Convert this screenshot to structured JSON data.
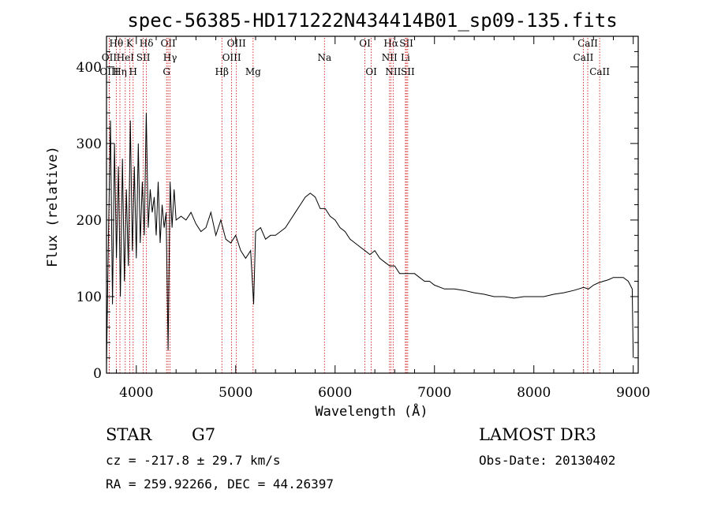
{
  "chart_data": {
    "type": "line",
    "title": "spec-56385-HD171222N434414B01_sp09-135.fits",
    "xlabel": "Wavelength (Å)",
    "ylabel": "Flux (relative)",
    "xlim": [
      3700,
      9050
    ],
    "ylim": [
      0,
      440
    ],
    "xticks": [
      4000,
      5000,
      6000,
      7000,
      8000,
      9000
    ],
    "yticks": [
      0,
      100,
      200,
      300,
      400
    ],
    "series": [
      {
        "name": "spectrum",
        "color": "#000000",
        "x": [
          3700,
          3720,
          3740,
          3760,
          3780,
          3800,
          3820,
          3840,
          3860,
          3880,
          3900,
          3920,
          3940,
          3960,
          3980,
          4000,
          4020,
          4040,
          4060,
          4080,
          4100,
          4120,
          4140,
          4160,
          4180,
          4200,
          4220,
          4240,
          4260,
          4280,
          4300,
          4320,
          4340,
          4360,
          4380,
          4400,
          4450,
          4500,
          4550,
          4600,
          4650,
          4700,
          4750,
          4800,
          4850,
          4900,
          4950,
          5000,
          5050,
          5100,
          5150,
          5180,
          5200,
          5250,
          5300,
          5350,
          5400,
          5450,
          5500,
          5550,
          5600,
          5650,
          5700,
          5750,
          5800,
          5850,
          5900,
          5950,
          6000,
          6050,
          6100,
          6150,
          6200,
          6250,
          6300,
          6350,
          6400,
          6450,
          6500,
          6550,
          6600,
          6650,
          6700,
          6750,
          6800,
          6850,
          6900,
          6950,
          7000,
          7100,
          7200,
          7300,
          7400,
          7500,
          7600,
          7700,
          7800,
          7900,
          8000,
          8100,
          8200,
          8300,
          8400,
          8450,
          8500,
          8550,
          8600,
          8650,
          8700,
          8750,
          8800,
          8850,
          8900,
          8950,
          8990,
          9000
        ],
        "y": [
          10,
          180,
          330,
          90,
          300,
          150,
          270,
          100,
          280,
          120,
          240,
          140,
          330,
          160,
          270,
          150,
          300,
          170,
          250,
          180,
          340,
          190,
          240,
          210,
          230,
          180,
          250,
          170,
          220,
          190,
          210,
          30,
          250,
          190,
          240,
          200,
          205,
          200,
          210,
          195,
          185,
          190,
          210,
          180,
          200,
          175,
          170,
          180,
          160,
          150,
          160,
          90,
          185,
          190,
          175,
          180,
          180,
          185,
          190,
          200,
          210,
          220,
          230,
          235,
          230,
          215,
          215,
          205,
          200,
          190,
          185,
          175,
          170,
          165,
          160,
          155,
          160,
          150,
          145,
          140,
          140,
          130,
          130,
          130,
          130,
          125,
          120,
          120,
          115,
          110,
          110,
          108,
          105,
          103,
          100,
          100,
          98,
          100,
          100,
          100,
          103,
          105,
          108,
          110,
          112,
          110,
          115,
          118,
          120,
          122,
          125,
          125,
          125,
          120,
          110,
          20
        ]
      }
    ],
    "lines": [
      {
        "name": "Hθ",
        "wave": 3798,
        "row": 0
      },
      {
        "name": "K",
        "wave": 3934,
        "row": 0
      },
      {
        "name": "Hδ",
        "wave": 4102,
        "row": 0
      },
      {
        "name": "OII",
        "wave": 4320,
        "row": 0
      },
      {
        "name": "OIII",
        "wave": 5007,
        "row": 0
      },
      {
        "name": "OI",
        "wave": 6300,
        "row": 0
      },
      {
        "name": "Hα",
        "wave": 6563,
        "row": 0
      },
      {
        "name": "SII",
        "wave": 6717,
        "row": 0
      },
      {
        "name": "CaII",
        "wave": 8542,
        "row": 0
      },
      {
        "name": "OII",
        "wave": 3727,
        "row": 1
      },
      {
        "name": "HeI",
        "wave": 3889,
        "row": 1
      },
      {
        "name": "SII",
        "wave": 4070,
        "row": 1
      },
      {
        "name": "Hγ",
        "wave": 4340,
        "row": 1
      },
      {
        "name": "OIII",
        "wave": 4959,
        "row": 1
      },
      {
        "name": "NII",
        "wave": 6548,
        "row": 1
      },
      {
        "name": "Li",
        "wave": 6708,
        "row": 1
      },
      {
        "name": "CaII",
        "wave": 8498,
        "row": 1
      },
      {
        "name": "OIII",
        "wave": 3727,
        "row": 2
      },
      {
        "name": "Hη",
        "wave": 3835,
        "row": 2
      },
      {
        "name": "H",
        "wave": 3968,
        "row": 2
      },
      {
        "name": "G",
        "wave": 4305,
        "row": 2
      },
      {
        "name": "Hβ",
        "wave": 4861,
        "row": 2
      },
      {
        "name": "Mg",
        "wave": 5175,
        "row": 2
      },
      {
        "name": "Na",
        "wave": 5893,
        "row": 1
      },
      {
        "name": "OI",
        "wave": 6364,
        "row": 2
      },
      {
        "name": "NII",
        "wave": 6584,
        "row": 2
      },
      {
        "name": "SII",
        "wave": 6731,
        "row": 2
      },
      {
        "name": "CaII",
        "wave": 8662,
        "row": 2
      }
    ]
  },
  "info": {
    "object_type": "STAR",
    "subclass": "G7",
    "survey": "LAMOST DR3",
    "cz": "cz = -217.8 ± 29.7 km/s",
    "obs_date": "Obs-Date: 20130402",
    "radec": "RA = 259.92266, DEC =  44.26397"
  },
  "colors": {
    "spectrum": "#000000",
    "line_marker": "#cc0000"
  }
}
